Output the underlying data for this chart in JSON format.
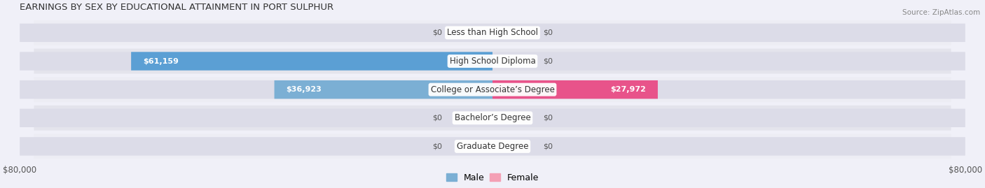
{
  "title": "EARNINGS BY SEX BY EDUCATIONAL ATTAINMENT IN PORT SULPHUR",
  "source": "Source: ZipAtlas.com",
  "categories": [
    "Less than High School",
    "High School Diploma",
    "College or Associate’s Degree",
    "Bachelor’s Degree",
    "Graduate Degree"
  ],
  "male_values": [
    0,
    61159,
    36923,
    0,
    0
  ],
  "female_values": [
    0,
    0,
    27972,
    0,
    0
  ],
  "male_labels": [
    "$0",
    "$61,159",
    "$36,923",
    "$0",
    "$0"
  ],
  "female_labels": [
    "$0",
    "$0",
    "$27,972",
    "$0",
    "$0"
  ],
  "male_color": "#7bafd4",
  "female_color": "#f4a0b5",
  "male_color_sat": "#5b9fd4",
  "female_color_sat": "#e8538a",
  "bg_bar_color": "#dcdce8",
  "row_bg_odd": "#ededf4",
  "row_bg_even": "#e4e4ec",
  "xlim": 80000,
  "stub_size": 7000,
  "axis_label_left": "$80,000",
  "axis_label_right": "$80,000",
  "legend_male": "Male",
  "legend_female": "Female"
}
